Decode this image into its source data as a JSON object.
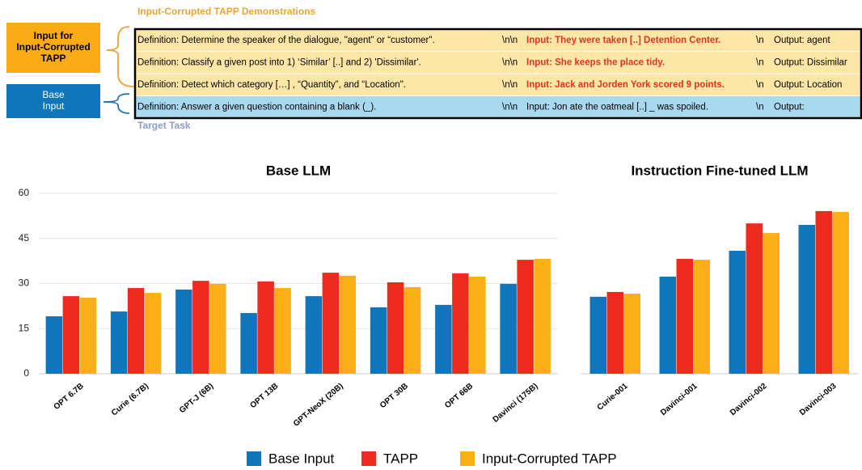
{
  "diagram": {
    "header": "Input-Corrupted TAPP Demonstrations",
    "left_boxes": [
      "Input for Input-Corrupted TAPP",
      "Base Input"
    ],
    "rows": [
      {
        "definition": "Definition: Determine the speaker of the dialogue, \"agent\" or “customer\".",
        "sep": "\\n\\n",
        "input": "Input: They were taken [..] Detention Center.",
        "sep2": "\\n",
        "output": "Output: agent"
      },
      {
        "definition": "Definition: Classify a given post into 1) ‘Similar’ [..] and 2) 'Dissimilar'.",
        "sep": "\\n\\n",
        "input": "Input: She keeps the place tidy.",
        "sep2": "\\n",
        "output": "Output: Dissimilar"
      },
      {
        "definition": "Definition: Detect which category […] , “Quantity”, and “Location\".",
        "sep": "\\n\\n",
        "input": "Input: Jack and Jorden York scored 9 points.",
        "sep2": "\\n",
        "output": "Output: Location"
      },
      {
        "definition": "Definition: Answer a given question containing a blank (_).",
        "sep": "\\n\\n",
        "input": "Input: Jon ate the oatmeal [..] _ was spoiled.",
        "sep2": "\\n",
        "output": "Output:"
      }
    ],
    "footer": "Target Task"
  },
  "chart_data": [
    {
      "type": "bar",
      "title": "Base LLM",
      "categories": [
        "OPT 6.7B",
        "Curie (6.7B)",
        "GPT-J (6B)",
        "OPT 13B",
        "GPT-NeoX (20B)",
        "OPT 30B",
        "OPT 66B",
        "Davinci (175B)"
      ],
      "series": [
        {
          "name": "Base Input",
          "color": "#0f76bb",
          "values": [
            19.1,
            20.7,
            28.0,
            20.2,
            25.8,
            22.1,
            22.9,
            29.9
          ]
        },
        {
          "name": "TAPP",
          "color": "#ee2a1e",
          "values": [
            25.8,
            28.5,
            30.9,
            30.7,
            33.6,
            30.4,
            33.4,
            37.9
          ]
        },
        {
          "name": "Input-Corrupted TAPP",
          "color": "#fcaf17",
          "values": [
            25.3,
            26.9,
            29.9,
            28.5,
            32.6,
            28.8,
            32.3,
            38.2
          ]
        }
      ],
      "ylim": [
        0,
        60
      ],
      "yticks": [
        0,
        15,
        30,
        45,
        60
      ],
      "grid": true
    },
    {
      "type": "bar",
      "title": "Instruction Fine-tuned LLM",
      "categories": [
        "Curie-001",
        "Davinci-001",
        "Davinci-002",
        "Davinci-003"
      ],
      "series": [
        {
          "name": "Base Input",
          "color": "#0f76bb",
          "values": [
            25.6,
            32.3,
            40.9,
            49.5
          ]
        },
        {
          "name": "TAPP",
          "color": "#ee2a1e",
          "values": [
            27.2,
            38.2,
            50.0,
            54.1
          ]
        },
        {
          "name": "Input-Corrupted TAPP",
          "color": "#fcaf17",
          "values": [
            26.6,
            37.9,
            46.8,
            53.8
          ]
        }
      ],
      "ylim": [
        0,
        60
      ],
      "yticks": [],
      "grid": false
    }
  ]
}
